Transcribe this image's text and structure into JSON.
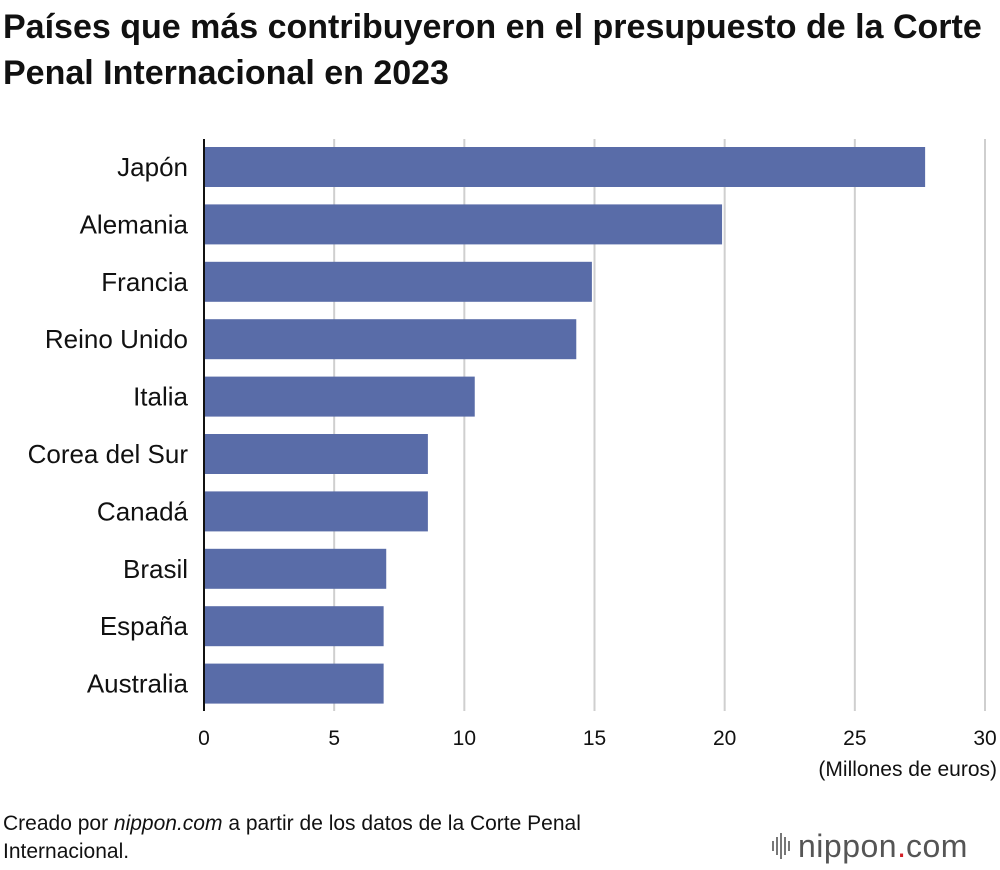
{
  "header": {
    "title": "Países que más contribuyeron en el presupuesto de la Corte Penal Internacional en 2023"
  },
  "chart_data": {
    "type": "bar",
    "orientation": "horizontal",
    "categories": [
      "Japón",
      "Alemania",
      "Francia",
      "Reino Unido",
      "Italia",
      "Corea del Sur",
      "Canadá",
      "Brasil",
      "España",
      "Australia"
    ],
    "values": [
      27.7,
      19.9,
      14.9,
      14.3,
      10.4,
      8.6,
      8.6,
      7.0,
      6.9,
      6.9
    ],
    "xlabel": "(Millones de euros)",
    "xlim": [
      0,
      30
    ],
    "xticks": [
      "0",
      "5",
      "10",
      "15",
      "20",
      "25",
      "30"
    ],
    "grid": "vertical",
    "bar_color": "#596ca8",
    "grid_color": "#cfcfcf",
    "axis_color": "#111111"
  },
  "footer": {
    "source_prefix": "Creado por ",
    "source_site": "nippon.com",
    "source_suffix": " a partir de los datos de la Corte Penal Internacional.",
    "logo_word": "nippon",
    "logo_dot": ".",
    "logo_tld": "com",
    "logo_accent": "#d21f26"
  }
}
